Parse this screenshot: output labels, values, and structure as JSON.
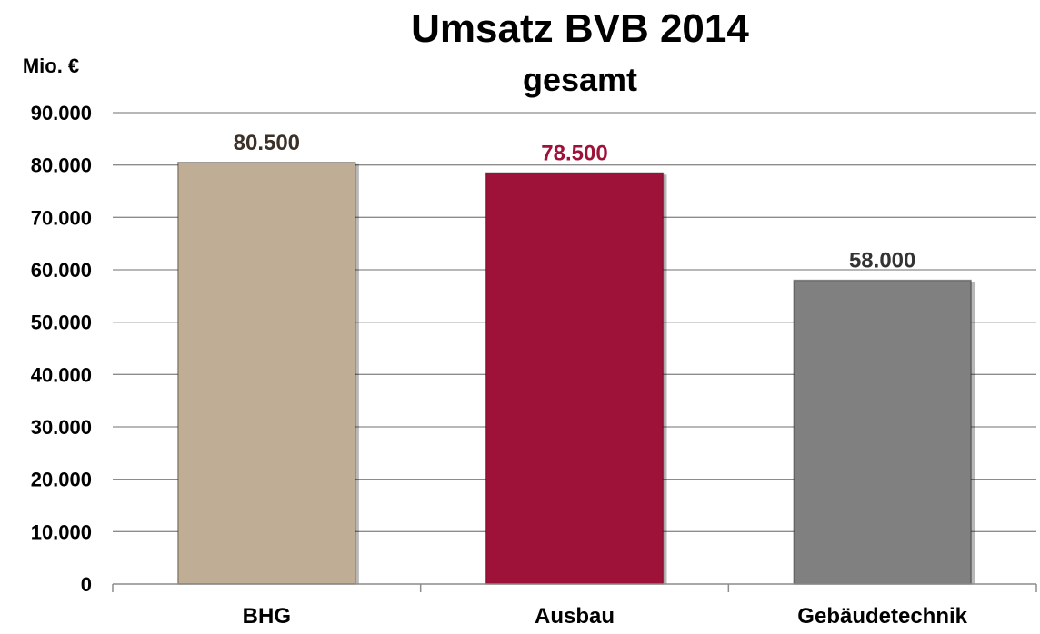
{
  "chart_data": {
    "type": "bar",
    "title": "Umsatz BVB 2014",
    "subtitle": "gesamt",
    "ylabel": "Mio. €",
    "xlabel": "",
    "categories": [
      "BHG",
      "Ausbau",
      "Gebäudetechnik"
    ],
    "values": [
      80500,
      78500,
      58000
    ],
    "value_labels": [
      "80.500",
      "78.500",
      "58.000"
    ],
    "ylim": [
      0,
      90000
    ],
    "yticks": [
      0,
      10000,
      20000,
      30000,
      40000,
      50000,
      60000,
      70000,
      80000,
      90000
    ],
    "ytick_labels": [
      "0",
      "10.000",
      "20.000",
      "30.000",
      "40.000",
      "50.000",
      "60.000",
      "70.000",
      "80.000",
      "90.000"
    ],
    "grid": true,
    "legend": "none",
    "bar_colors": [
      "#BFAD96",
      "#9E1239",
      "#808080"
    ],
    "value_label_colors": [
      "#3B3128",
      "#9E1239",
      "#333333"
    ]
  }
}
